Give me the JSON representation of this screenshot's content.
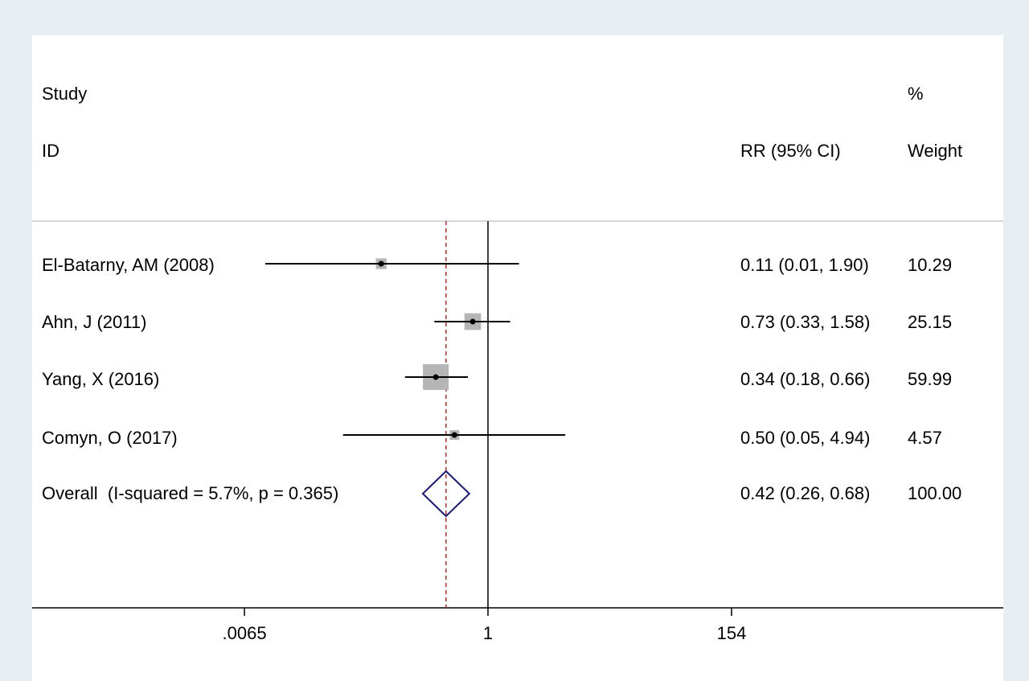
{
  "chart_data": {
    "type": "forest",
    "header": {
      "col1_line1": "Study",
      "col1_line2": "ID",
      "col2": "RR (95% CI)",
      "col3_line1": "%",
      "col3_line2": "Weight"
    },
    "x_scale": "log",
    "x_ticks": [
      {
        "label": ".0065",
        "value": 0.0065
      },
      {
        "label": "1",
        "value": 1
      },
      {
        "label": "154",
        "value": 154
      }
    ],
    "null_line": 1,
    "studies": [
      {
        "label": "El-Batarny, AM (2008)",
        "rr": 0.11,
        "lo": 0.01,
        "hi": 1.9,
        "rr_text": "0.11 (0.01, 1.90)",
        "weight_text": "10.29",
        "weight": 10.29
      },
      {
        "label": "Ahn, J (2011)",
        "rr": 0.73,
        "lo": 0.33,
        "hi": 1.58,
        "rr_text": "0.73 (0.33, 1.58)",
        "weight_text": "25.15",
        "weight": 25.15
      },
      {
        "label": "Yang, X (2016)",
        "rr": 0.34,
        "lo": 0.18,
        "hi": 0.66,
        "rr_text": "0.34 (0.18, 0.66)",
        "weight_text": "59.99",
        "weight": 59.99
      },
      {
        "label": "Comyn, O (2017)",
        "rr": 0.5,
        "lo": 0.05,
        "hi": 4.94,
        "rr_text": "0.50 (0.05, 4.94)",
        "weight_text": "4.57",
        "weight": 4.57
      }
    ],
    "overall": {
      "label": "Overall  (I-squared = 5.7%, p = 0.365)",
      "rr": 0.42,
      "lo": 0.26,
      "hi": 0.68,
      "rr_text": "0.42 (0.26, 0.68)",
      "weight_text": "100.00"
    },
    "colors": {
      "background": "#e8eff2",
      "panel": "#ffffff",
      "box": "#b5b5b5",
      "diamond": "#1a1a6e",
      "overall_line": "#a0322d",
      "rule": "#c8c8c8"
    }
  }
}
